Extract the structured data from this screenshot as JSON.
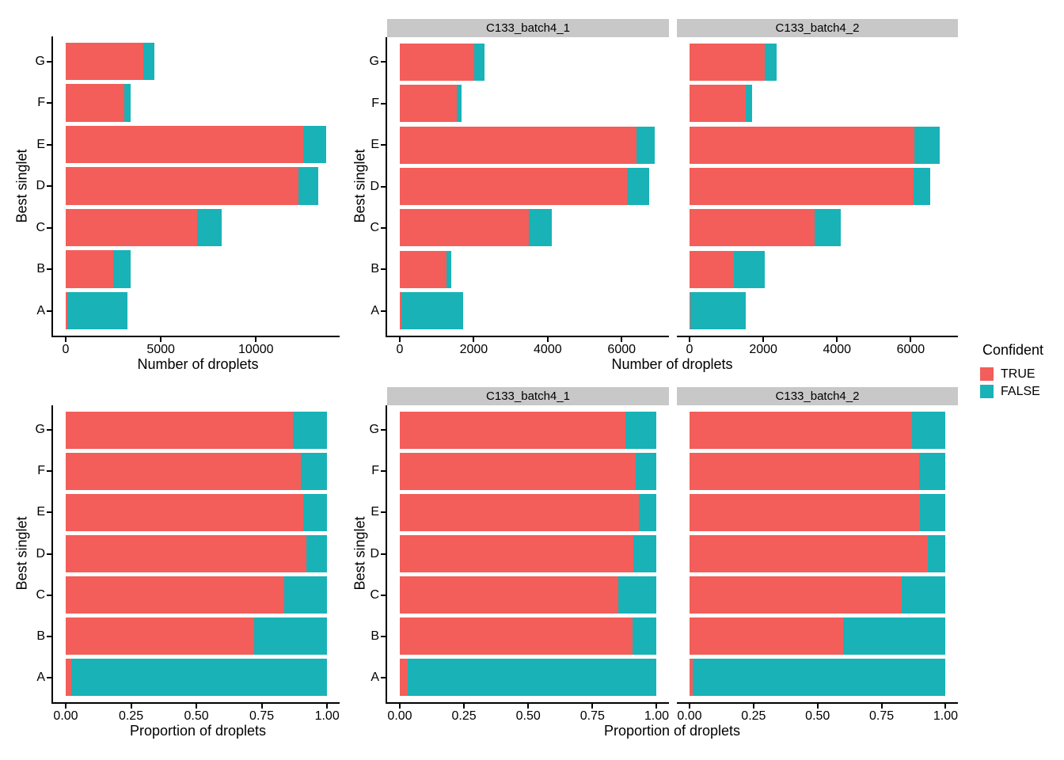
{
  "colors": {
    "TRUE": "#F35E5A",
    "FALSE": "#19B2B7",
    "strip_bg": "#C8C8C8",
    "axis": "#000000"
  },
  "legend": {
    "title": "Confident",
    "items": [
      {
        "label": "TRUE",
        "color": "#F35E5A"
      },
      {
        "label": "FALSE",
        "color": "#19B2B7"
      }
    ]
  },
  "chart_data": [
    {
      "type": "bar",
      "orientation": "horizontal",
      "stacked": true,
      "facet": null,
      "xlabel": "Number of droplets",
      "ylabel": "Best singlet",
      "categories": [
        "G",
        "F",
        "E",
        "D",
        "C",
        "B",
        "A"
      ],
      "series": [
        {
          "name": "TRUE",
          "values": [
            4080,
            3060,
            12500,
            12220,
            6900,
            2480,
            75
          ]
        },
        {
          "name": "FALSE",
          "values": [
            580,
            340,
            1180,
            1060,
            1320,
            950,
            3170
          ]
        }
      ],
      "xticks": [
        "0",
        "5000",
        "10000"
      ],
      "xtick_values": [
        0,
        5000,
        10000
      ],
      "xlim": [
        0,
        14400
      ],
      "grid": false
    },
    {
      "type": "bar",
      "orientation": "horizontal",
      "stacked": true,
      "facet": "C133_batch4_1",
      "xlabel": "Number of droplets",
      "ylabel": "Best singlet",
      "categories": [
        "G",
        "F",
        "E",
        "D",
        "C",
        "B",
        "A"
      ],
      "series": [
        {
          "name": "TRUE",
          "values": [
            2010,
            1540,
            6400,
            6140,
            3500,
            1270,
            50
          ]
        },
        {
          "name": "FALSE",
          "values": [
            280,
            130,
            490,
            610,
            610,
            130,
            1670
          ]
        }
      ],
      "xticks": [
        "0",
        "2000",
        "4000",
        "6000"
      ],
      "xtick_values": [
        0,
        2000,
        4000,
        6000
      ],
      "xlim": [
        0,
        7280
      ],
      "grid": false
    },
    {
      "type": "bar",
      "orientation": "horizontal",
      "stacked": true,
      "facet": "C133_batch4_2",
      "xlabel": "Number of droplets",
      "ylabel": "Best singlet",
      "categories": [
        "G",
        "F",
        "E",
        "D",
        "C",
        "B",
        "A"
      ],
      "series": [
        {
          "name": "TRUE",
          "values": [
            2050,
            1530,
            6100,
            6080,
            3400,
            1210,
            25
          ]
        },
        {
          "name": "FALSE",
          "values": [
            310,
            170,
            690,
            450,
            710,
            820,
            1495
          ]
        }
      ],
      "xticks": [
        "0",
        "2000",
        "4000",
        "6000"
      ],
      "xtick_values": [
        0,
        2000,
        4000,
        6000
      ],
      "xlim": [
        0,
        7280
      ],
      "grid": false
    },
    {
      "type": "bar",
      "orientation": "horizontal",
      "stacked": true,
      "facet": null,
      "xlabel": "Proportion of droplets",
      "ylabel": "Best singlet",
      "categories": [
        "G",
        "F",
        "E",
        "D",
        "C",
        "B",
        "A"
      ],
      "series": [
        {
          "name": "TRUE",
          "values": [
            0.87,
            0.9,
            0.91,
            0.92,
            0.835,
            0.72,
            0.02
          ]
        },
        {
          "name": "FALSE",
          "values": [
            0.13,
            0.1,
            0.09,
            0.08,
            0.165,
            0.28,
            0.98
          ]
        }
      ],
      "xticks": [
        "0.00",
        "0.25",
        "0.50",
        "0.75",
        "1.00"
      ],
      "xtick_values": [
        0,
        0.25,
        0.5,
        0.75,
        1.0
      ],
      "xlim": [
        0,
        1.048
      ],
      "grid": false
    },
    {
      "type": "bar",
      "orientation": "horizontal",
      "stacked": true,
      "facet": "C133_batch4_1",
      "xlabel": "Proportion of droplets",
      "ylabel": "Best singlet",
      "categories": [
        "G",
        "F",
        "E",
        "D",
        "C",
        "B",
        "A"
      ],
      "series": [
        {
          "name": "TRUE",
          "values": [
            0.88,
            0.92,
            0.93,
            0.91,
            0.85,
            0.905,
            0.03
          ]
        },
        {
          "name": "FALSE",
          "values": [
            0.12,
            0.08,
            0.07,
            0.09,
            0.15,
            0.095,
            0.97
          ]
        }
      ],
      "xticks": [
        "0.00",
        "0.25",
        "0.50",
        "0.75",
        "1.00"
      ],
      "xtick_values": [
        0,
        0.25,
        0.5,
        0.75,
        1.0
      ],
      "xlim": [
        0,
        1.048
      ],
      "grid": false
    },
    {
      "type": "bar",
      "orientation": "horizontal",
      "stacked": true,
      "facet": "C133_batch4_2",
      "xlabel": "Proportion of droplets",
      "ylabel": "Best singlet",
      "categories": [
        "G",
        "F",
        "E",
        "D",
        "C",
        "B",
        "A"
      ],
      "series": [
        {
          "name": "TRUE",
          "values": [
            0.87,
            0.895,
            0.9,
            0.93,
            0.83,
            0.6,
            0.012
          ]
        },
        {
          "name": "FALSE",
          "values": [
            0.13,
            0.105,
            0.1,
            0.07,
            0.17,
            0.4,
            0.988
          ]
        }
      ],
      "xticks": [
        "0.00",
        "0.25",
        "0.50",
        "0.75",
        "1.00"
      ],
      "xtick_values": [
        0,
        0.25,
        0.5,
        0.75,
        1.0
      ],
      "xlim": [
        0,
        1.048
      ],
      "grid": false
    }
  ]
}
